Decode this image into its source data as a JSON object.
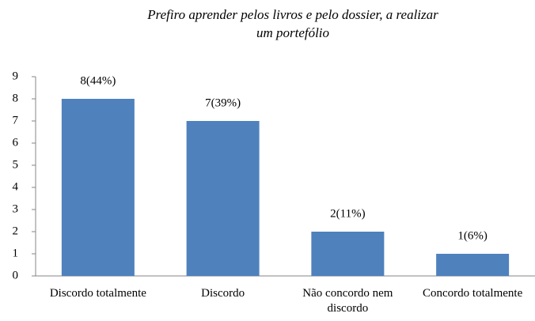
{
  "chart_data": {
    "type": "bar",
    "title": [
      "Prefiro aprender pelos livros e pelo dossier, a realizar",
      "um portefólio"
    ],
    "categories": [
      "Discordo totalmente",
      "Discordo",
      "Não concordo nem discordo",
      "Concordo totalmente"
    ],
    "values": [
      8,
      7,
      2,
      1
    ],
    "value_labels": [
      "8(44%)",
      "7(39%)",
      "2(11%)",
      "1(6%)"
    ],
    "color": "#4f81bd",
    "ylim": [
      0,
      9
    ],
    "yticks": [
      0,
      1,
      2,
      3,
      4,
      5,
      6,
      7,
      8,
      9
    ],
    "grid": false
  }
}
